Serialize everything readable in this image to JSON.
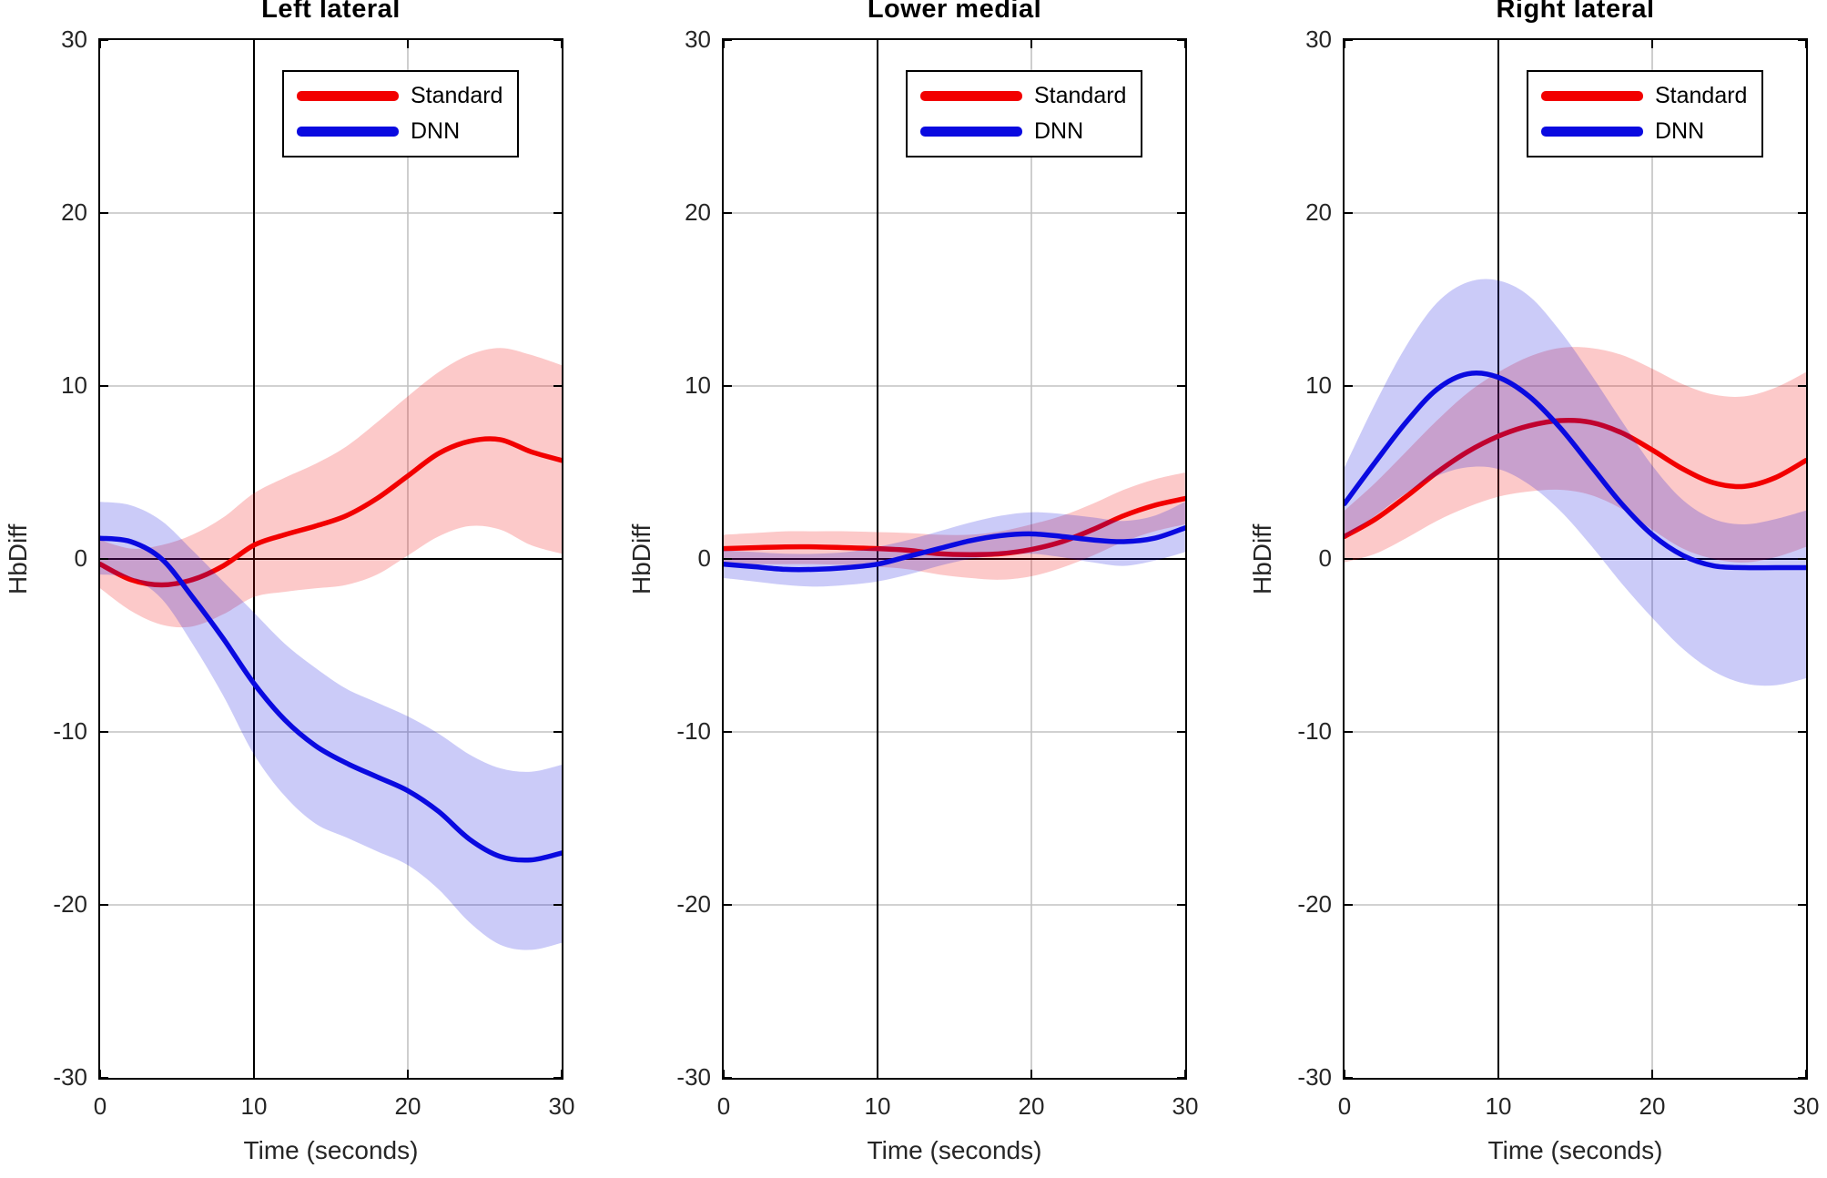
{
  "figure": {
    "x_label": "Time (seconds)",
    "y_label": "HbDiff",
    "legend": {
      "standard_label": "Standard",
      "dnn_label": "DNN"
    },
    "colors": {
      "standard": "#f20000",
      "dnn": "#0a0ae0",
      "band_opacity": 0.21,
      "grid": "#c2c2c2",
      "axis": "#000000",
      "tick_label": "#262626"
    }
  },
  "chart_data": [
    {
      "type": "line",
      "title": "Left lateral",
      "xlabel": "Time (seconds)",
      "ylabel": "HbDiff",
      "xlim": [
        0,
        30
      ],
      "ylim": [
        -30,
        30
      ],
      "xticks": [
        0,
        10,
        20,
        30
      ],
      "yticks": [
        -30,
        -20,
        -10,
        0,
        10,
        20,
        30
      ],
      "event_line_x": 10,
      "zero_line_y": 0,
      "grid": true,
      "legend_position": "northeast",
      "x": [
        0,
        2,
        4,
        6,
        8,
        10,
        12,
        14,
        16,
        18,
        20,
        22,
        24,
        26,
        28,
        30
      ],
      "series": [
        {
          "name": "Standard",
          "color": "#f20000",
          "mean": [
            -0.3,
            -1.2,
            -1.5,
            -1.2,
            -0.4,
            0.8,
            1.4,
            1.9,
            2.5,
            3.5,
            4.8,
            6.1,
            6.8,
            6.9,
            6.2,
            5.7
          ],
          "upper": [
            1.1,
            0.6,
            0.8,
            1.4,
            2.4,
            3.8,
            4.7,
            5.5,
            6.5,
            7.9,
            9.4,
            10.8,
            11.8,
            12.2,
            11.8,
            11.2
          ],
          "lower": [
            -1.7,
            -3.0,
            -3.8,
            -3.9,
            -3.2,
            -2.2,
            -1.9,
            -1.7,
            -1.5,
            -0.9,
            0.2,
            1.3,
            1.9,
            1.7,
            0.8,
            0.3
          ]
        },
        {
          "name": "DNN",
          "color": "#0a0ae0",
          "mean": [
            1.2,
            1.0,
            0.0,
            -2.2,
            -4.6,
            -7.2,
            -9.3,
            -10.8,
            -11.8,
            -12.6,
            -13.4,
            -14.6,
            -16.2,
            -17.2,
            -17.4,
            -17.0
          ],
          "upper": [
            3.3,
            3.1,
            2.2,
            0.5,
            -1.3,
            -3.1,
            -4.9,
            -6.3,
            -7.5,
            -8.3,
            -9.1,
            -10.1,
            -11.3,
            -12.1,
            -12.3,
            -11.9
          ],
          "lower": [
            -0.9,
            -1.1,
            -2.3,
            -4.9,
            -7.9,
            -11.3,
            -13.7,
            -15.3,
            -16.1,
            -16.9,
            -17.7,
            -19.1,
            -21.0,
            -22.3,
            -22.6,
            -22.2
          ]
        }
      ]
    },
    {
      "type": "line",
      "title": "Lower medial",
      "xlabel": "Time (seconds)",
      "ylabel": "HbDiff",
      "xlim": [
        0,
        30
      ],
      "ylim": [
        -30,
        30
      ],
      "xticks": [
        0,
        10,
        20,
        30
      ],
      "yticks": [
        -30,
        -20,
        -10,
        0,
        10,
        20,
        30
      ],
      "event_line_x": 10,
      "zero_line_y": 0,
      "grid": true,
      "legend_position": "northeast",
      "x": [
        0,
        2,
        4,
        6,
        8,
        10,
        12,
        14,
        16,
        18,
        20,
        22,
        24,
        26,
        28,
        30
      ],
      "series": [
        {
          "name": "Standard",
          "color": "#f20000",
          "mean": [
            0.6,
            0.65,
            0.7,
            0.7,
            0.65,
            0.6,
            0.5,
            0.3,
            0.25,
            0.3,
            0.55,
            1.0,
            1.7,
            2.5,
            3.1,
            3.5
          ],
          "upper": [
            1.4,
            1.5,
            1.6,
            1.6,
            1.6,
            1.55,
            1.5,
            1.4,
            1.4,
            1.6,
            2.0,
            2.5,
            3.2,
            4.0,
            4.6,
            5.0
          ],
          "lower": [
            -0.3,
            -0.3,
            -0.3,
            -0.3,
            -0.35,
            -0.45,
            -0.6,
            -0.9,
            -1.1,
            -1.2,
            -1.0,
            -0.5,
            0.2,
            1.0,
            1.6,
            2.0
          ]
        },
        {
          "name": "DNN",
          "color": "#0a0ae0",
          "mean": [
            -0.3,
            -0.45,
            -0.6,
            -0.6,
            -0.5,
            -0.3,
            0.15,
            0.6,
            1.05,
            1.35,
            1.45,
            1.3,
            1.1,
            1.0,
            1.2,
            1.8
          ],
          "upper": [
            0.5,
            0.4,
            0.3,
            0.3,
            0.4,
            0.7,
            1.1,
            1.6,
            2.1,
            2.5,
            2.7,
            2.6,
            2.4,
            2.2,
            2.5,
            3.3
          ],
          "lower": [
            -1.1,
            -1.3,
            -1.5,
            -1.6,
            -1.5,
            -1.3,
            -0.9,
            -0.4,
            0.0,
            0.2,
            0.3,
            0.1,
            -0.2,
            -0.4,
            -0.1,
            0.4
          ]
        }
      ]
    },
    {
      "type": "line",
      "title": "Right lateral",
      "xlabel": "Time (seconds)",
      "ylabel": "HbDiff",
      "xlim": [
        0,
        30
      ],
      "ylim": [
        -30,
        30
      ],
      "xticks": [
        0,
        10,
        20,
        30
      ],
      "yticks": [
        -30,
        -20,
        -10,
        0,
        10,
        20,
        30
      ],
      "event_line_x": 10,
      "zero_line_y": 0,
      "grid": true,
      "legend_position": "northeast",
      "x": [
        0,
        2,
        4,
        6,
        8,
        10,
        12,
        14,
        16,
        18,
        20,
        22,
        24,
        26,
        28,
        30
      ],
      "series": [
        {
          "name": "Standard",
          "color": "#f20000",
          "mean": [
            1.3,
            2.3,
            3.6,
            5.0,
            6.2,
            7.1,
            7.7,
            8.0,
            7.9,
            7.3,
            6.3,
            5.2,
            4.4,
            4.2,
            4.7,
            5.7
          ],
          "upper": [
            2.8,
            4.4,
            6.2,
            8.0,
            9.6,
            10.8,
            11.7,
            12.2,
            12.2,
            11.8,
            11.0,
            10.1,
            9.5,
            9.4,
            9.9,
            10.8
          ],
          "lower": [
            -0.2,
            0.3,
            1.2,
            2.2,
            3.0,
            3.6,
            3.9,
            4.0,
            3.7,
            2.9,
            1.7,
            0.6,
            0.0,
            -0.2,
            0.1,
            0.7
          ]
        },
        {
          "name": "DNN",
          "color": "#0a0ae0",
          "mean": [
            3.2,
            5.6,
            7.9,
            9.8,
            10.7,
            10.5,
            9.4,
            7.6,
            5.4,
            3.2,
            1.4,
            0.2,
            -0.4,
            -0.5,
            -0.5,
            -0.5
          ],
          "upper": [
            5.3,
            9.0,
            12.3,
            14.8,
            16.0,
            16.1,
            15.2,
            13.2,
            10.7,
            8.0,
            5.4,
            3.4,
            2.3,
            2.0,
            2.3,
            2.8
          ],
          "lower": [
            1.2,
            2.5,
            3.8,
            4.8,
            5.3,
            5.2,
            4.3,
            2.8,
            0.8,
            -1.4,
            -3.4,
            -5.2,
            -6.5,
            -7.2,
            -7.3,
            -6.9
          ]
        }
      ]
    }
  ]
}
